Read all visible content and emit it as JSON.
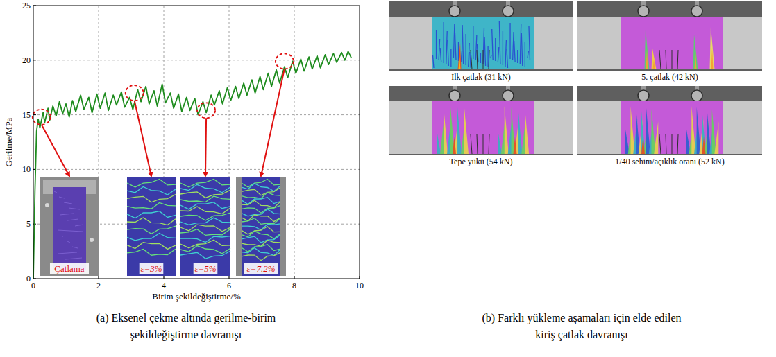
{
  "chart_data": {
    "type": "line",
    "x_label": "Birim şekildeğiştirme/%",
    "y_label": "Gerilme/MPa",
    "xlim": [
      0,
      10
    ],
    "ylim": [
      0,
      25
    ],
    "xticks": [
      0,
      2,
      4,
      6,
      8,
      10
    ],
    "yticks": [
      0,
      5,
      10,
      15,
      20,
      25
    ],
    "grid": true,
    "x": [
      0,
      0.05,
      0.1,
      0.15,
      0.2,
      0.3,
      0.35,
      0.45,
      0.5,
      0.6,
      0.7,
      0.8,
      0.9,
      1.0,
      1.1,
      1.2,
      1.3,
      1.45,
      1.55,
      1.7,
      1.8,
      1.95,
      2.05,
      2.2,
      2.3,
      2.45,
      2.55,
      2.7,
      2.8,
      2.95,
      3.05,
      3.2,
      3.3,
      3.45,
      3.55,
      3.7,
      3.8,
      3.95,
      4.05,
      4.2,
      4.3,
      4.45,
      4.55,
      4.7,
      4.8,
      4.95,
      5.05,
      5.2,
      5.3,
      5.45,
      5.55,
      5.7,
      5.8,
      5.95,
      6.05,
      6.2,
      6.3,
      6.45,
      6.55,
      6.7,
      6.8,
      6.95,
      7.05,
      7.2,
      7.3,
      7.45,
      7.55,
      7.7,
      7.8,
      7.95,
      8.05,
      8.2,
      8.3,
      8.45,
      8.55,
      8.7,
      8.8,
      8.95,
      9.05,
      9.2,
      9.3,
      9.45,
      9.55,
      9.65,
      9.75
    ],
    "series": [
      {
        "color": "#1e8c1e",
        "values": [
          0,
          8,
          13.5,
          14.6,
          13.8,
          15.2,
          14.3,
          15.6,
          14.5,
          15.8,
          14.9,
          16.2,
          15.1,
          16.0,
          14.8,
          16.3,
          15.3,
          16.8,
          15.5,
          16.6,
          15.2,
          16.9,
          15.6,
          17.0,
          15.4,
          16.8,
          15.9,
          17.1,
          15.7,
          16.6,
          15.5,
          17.3,
          16.2,
          17.6,
          16.0,
          17.2,
          15.8,
          17.8,
          16.1,
          17.0,
          15.6,
          16.9,
          15.3,
          16.6,
          15.4,
          16.5,
          15.0,
          16.2,
          15.2,
          16.8,
          15.9,
          17.2,
          16.0,
          17.5,
          16.3,
          17.6,
          16.5,
          17.9,
          16.8,
          18.2,
          17.0,
          18.5,
          17.3,
          18.8,
          17.6,
          19.1,
          17.9,
          19.4,
          18.4,
          19.9,
          18.8,
          20.1,
          19.0,
          20.3,
          19.2,
          20.4,
          19.3,
          20.5,
          19.6,
          20.6,
          19.8,
          20.7,
          20.0,
          20.8,
          20.2
        ]
      }
    ],
    "highlights": [
      {
        "x": 0.25,
        "y": 14.8,
        "label": "Çatlama"
      },
      {
        "x": 3.1,
        "y": 17.0,
        "label": "ε=3%"
      },
      {
        "x": 5.3,
        "y": 15.4,
        "label": "ε=5%"
      },
      {
        "x": 7.7,
        "y": 19.9,
        "label": "ε=7.2%"
      }
    ],
    "caption": [
      "(a) Eksenel çekme altında gerilme-birim",
      "şekildeğiştirme davranışı"
    ]
  },
  "photo_panel": {
    "images": [
      {
        "label": "İlk çatlak (31 kN)"
      },
      {
        "label": "5. çatlak (42 kN)"
      },
      {
        "label": "Tepe yükü (54 kN)"
      },
      {
        "label": "1/40 sehim/açıklık oranı (52 kN)"
      }
    ],
    "caption": [
      "(b) Farklı yükleme aşamaları için elde edilen",
      "kiriş çatlak davranışı"
    ]
  }
}
